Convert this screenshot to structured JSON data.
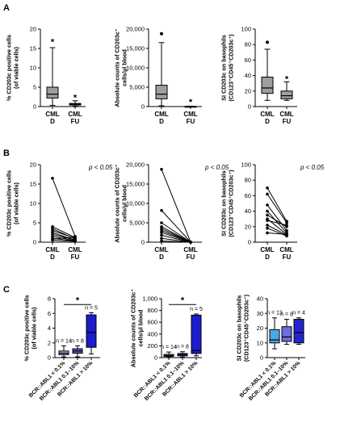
{
  "panel_labels": [
    "A",
    "B",
    "C"
  ],
  "chart_data": [
    {
      "id": "A1",
      "panel": "A",
      "type": "box",
      "ylabel_lines": [
        "% CD203c positive cells",
        "(of viable cells)"
      ],
      "ylim": [
        0,
        20
      ],
      "yticks": [
        "0",
        "5",
        "10",
        "15",
        "20"
      ],
      "categories": [
        [
          "CML",
          "D"
        ],
        [
          "CML",
          "FU"
        ]
      ],
      "boxes": [
        {
          "min": 0.3,
          "q1": 2.2,
          "median": 3.2,
          "q3": 5.0,
          "max": 15.2,
          "fill": "#9e9e9e"
        },
        {
          "min": 0.1,
          "q1": 0.4,
          "median": 0.6,
          "q3": 0.8,
          "max": 1.5,
          "fill": "#9e9e9e"
        }
      ],
      "outliers": [],
      "sig": [
        {
          "x": 0,
          "y": 16.8,
          "text": "*"
        },
        {
          "x": 1,
          "y": 2.4,
          "text": "*"
        }
      ]
    },
    {
      "id": "A2",
      "panel": "A",
      "type": "box",
      "ylabel_lines": [
        "Absolute counts of CD203c⁺",
        "cells/µl blood"
      ],
      "ylim": [
        0,
        20000
      ],
      "yticks": [
        "0",
        "5,000",
        "10,000",
        "15,000",
        "20,000"
      ],
      "categories": [
        [
          "CML",
          "D"
        ],
        [
          "CML",
          "FU"
        ]
      ],
      "boxes": [
        {
          "min": 200,
          "q1": 2000,
          "median": 3200,
          "q3": 5500,
          "max": 16500,
          "fill": "#9e9e9e"
        },
        {
          "min": 0,
          "q1": 10,
          "median": 20,
          "q3": 40,
          "max": 90,
          "fill": "#9e9e9e"
        }
      ],
      "outliers": [
        {
          "x": 0,
          "y": 18800
        }
      ],
      "sig": [
        {
          "x": 1,
          "y": 1300,
          "text": "*"
        }
      ]
    },
    {
      "id": "A3",
      "panel": "A",
      "type": "box",
      "ylabel_lines": [
        "SI CD203c on basophils",
        "(CD123⁺CD45⁺CD203c⁺)"
      ],
      "ylim": [
        0,
        100
      ],
      "yticks": [
        "0",
        "20",
        "40",
        "60",
        "80",
        "100"
      ],
      "categories": [
        [
          "CML",
          "D"
        ],
        [
          "CML",
          "FU"
        ]
      ],
      "boxes": [
        {
          "min": 8,
          "q1": 17,
          "median": 24,
          "q3": 38,
          "max": 74,
          "fill": "#9e9e9e"
        },
        {
          "min": 8,
          "q1": 10,
          "median": 14,
          "q3": 20,
          "max": 32,
          "fill": "#9e9e9e"
        }
      ],
      "outliers": [
        {
          "x": 0,
          "y": 83
        }
      ],
      "sig": [
        {
          "x": 1,
          "y": 36,
          "text": "*"
        }
      ]
    },
    {
      "id": "B1",
      "panel": "B",
      "type": "paired",
      "ylabel_lines": [
        "% CD203c positive cells",
        "(of viable cells)"
      ],
      "ylim": [
        0,
        20
      ],
      "yticks": [
        "0",
        "5",
        "10",
        "15",
        "20"
      ],
      "categories": [
        [
          "CML",
          "D"
        ],
        [
          "CML",
          "FU"
        ]
      ],
      "annotation": "p < 0.05",
      "pairs": [
        [
          16.5,
          1.5
        ],
        [
          4.0,
          1.2
        ],
        [
          3.5,
          0.8
        ],
        [
          3.0,
          1.0
        ],
        [
          2.5,
          0.5
        ],
        [
          2.0,
          0.6
        ],
        [
          1.5,
          0.4
        ],
        [
          1.0,
          0.3
        ],
        [
          0.8,
          1.3
        ],
        [
          0.5,
          0.2
        ]
      ]
    },
    {
      "id": "B2",
      "panel": "B",
      "type": "paired",
      "ylabel_lines": [
        "Absolute counts of CD203c⁺",
        "cells/µl blood"
      ],
      "ylim": [
        0,
        20000
      ],
      "yticks": [
        "0",
        "5,000",
        "10,000",
        "15,000",
        "20,000"
      ],
      "categories": [
        [
          "CML",
          "D"
        ],
        [
          "CML",
          "FU"
        ]
      ],
      "annotation": "p < 0.05",
      "pairs": [
        [
          18800,
          50
        ],
        [
          8200,
          40
        ],
        [
          5000,
          30
        ],
        [
          4000,
          20
        ],
        [
          3500,
          20
        ],
        [
          3000,
          10
        ],
        [
          2500,
          10
        ],
        [
          1800,
          5
        ],
        [
          1000,
          5
        ],
        [
          300,
          0
        ]
      ]
    },
    {
      "id": "B3",
      "panel": "B",
      "type": "paired",
      "ylabel_lines": [
        "SI CD203c on basophils",
        "(CD123⁺CD45⁺CD203c⁺)"
      ],
      "ylim": [
        0,
        100
      ],
      "yticks": [
        "0",
        "20",
        "40",
        "60",
        "80",
        "100"
      ],
      "categories": [
        [
          "CML",
          "D"
        ],
        [
          "CML",
          "FU"
        ]
      ],
      "annotation": "p < 0.05",
      "pairs": [
        [
          70,
          27
        ],
        [
          62,
          25
        ],
        [
          48,
          15
        ],
        [
          40,
          12
        ],
        [
          35,
          20
        ],
        [
          30,
          10
        ],
        [
          28,
          22
        ],
        [
          22,
          9
        ],
        [
          18,
          8
        ],
        [
          12,
          10
        ]
      ]
    },
    {
      "id": "C1",
      "panel": "C",
      "type": "box",
      "ylabel_lines": [
        "% CD203c positive cells",
        "(of viable cells)"
      ],
      "ylim": [
        0,
        8
      ],
      "yticks": [
        "0",
        "2",
        "4",
        "6",
        "8"
      ],
      "categories": [
        "BCR::ABL1 < 0.1%",
        "BCR::ABL1 0.1–10%",
        "BCR::ABL1 > 10%"
      ],
      "n_labels": [
        "n = 14",
        "n = 8",
        "n = 5"
      ],
      "boxes": [
        {
          "min": 0.1,
          "q1": 0.4,
          "median": 0.6,
          "q3": 0.9,
          "max": 1.6,
          "fill": "#9fa3ea"
        },
        {
          "min": 0.1,
          "q1": 0.6,
          "median": 0.9,
          "q3": 1.2,
          "max": 1.6,
          "fill": "#5156dc"
        },
        {
          "min": 0.5,
          "q1": 1.4,
          "median": 3.4,
          "q3": 5.8,
          "max": 6.1,
          "fill": "#1c1ccc"
        }
      ],
      "sig_bracket": {
        "from": 0,
        "to": 2,
        "y": 7.2,
        "text": "*"
      }
    },
    {
      "id": "C2",
      "panel": "C",
      "type": "box",
      "ylabel_lines": [
        "Absolute counts of CD203c⁺",
        "cells/µl blood"
      ],
      "ylim": [
        0,
        1000
      ],
      "yticks": [
        "0",
        "200",
        "400",
        "600",
        "800",
        "1,000"
      ],
      "categories": [
        "BCR::ABL1 < 0.1%",
        "BCR::ABL1 0.1–10%",
        "BCR::ABL1 > 10%"
      ],
      "n_labels": [
        "n = 14",
        "n = 8",
        "n = 5"
      ],
      "boxes": [
        {
          "min": 5,
          "q1": 20,
          "median": 35,
          "q3": 55,
          "max": 95,
          "fill": "#9fa3ea"
        },
        {
          "min": 10,
          "q1": 30,
          "median": 50,
          "q3": 70,
          "max": 100,
          "fill": "#5156dc"
        },
        {
          "min": 30,
          "q1": 70,
          "median": 120,
          "q3": 720,
          "max": 740,
          "fill": "#1c1ccc"
        }
      ],
      "sig_bracket": {
        "from": 0,
        "to": 2,
        "y": 900,
        "text": "*"
      }
    },
    {
      "id": "C3",
      "panel": "C",
      "type": "box",
      "ylabel_lines": [
        "SI CD203c on basophils",
        "(CD123⁺CD45⁺CD203c⁺)"
      ],
      "ylim": [
        0,
        40
      ],
      "yticks": [
        "0",
        "10",
        "20",
        "30",
        "40"
      ],
      "categories": [
        "BCR::ABL1 < 0.1%",
        "BCR::ABL1 0.1–10%",
        "BCR::ABL1 > 10%"
      ],
      "n_labels": [
        "n = 13",
        "n = 8",
        "n = 4"
      ],
      "boxes": [
        {
          "min": 6,
          "q1": 10,
          "median": 12,
          "q3": 19,
          "max": 27,
          "fill": "#4ba7e6"
        },
        {
          "min": 9,
          "q1": 11,
          "median": 14,
          "q3": 21,
          "max": 26,
          "fill": "#6b70df"
        },
        {
          "min": 9,
          "q1": 10,
          "median": 17,
          "q3": 26,
          "max": 27,
          "fill": "#2323d0"
        }
      ],
      "sig_bracket": null
    }
  ]
}
